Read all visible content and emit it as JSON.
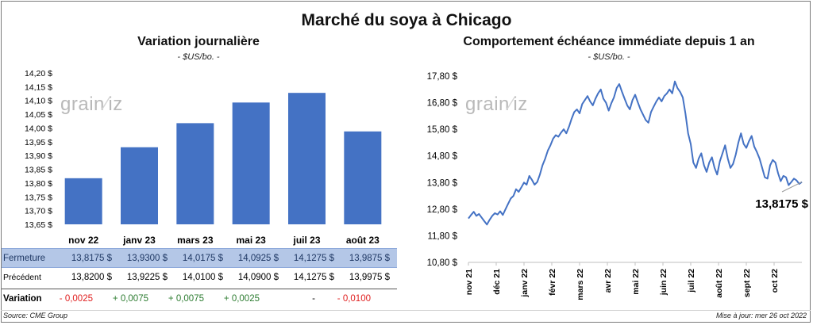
{
  "title": "Marché du soya à Chicago",
  "watermark": {
    "a": "grain",
    "b": "iz"
  },
  "left": {
    "title": "Variation  journalière",
    "unit": "- $US/bo. -"
  },
  "right": {
    "title": "Comportement  échéance immédiate depuis 1 an",
    "unit": "- $US/bo. -"
  },
  "colors": {
    "bar": "#4472c4",
    "line": "#4472c4",
    "positive": "#2e7d32",
    "negative": "#e02020",
    "header_band": "#b4c7e7"
  },
  "chart_data": [
    {
      "type": "bar",
      "title": "Variation  journalière",
      "categories": [
        "nov 22",
        "janv 23",
        "mars 23",
        "mai 23",
        "juil 23",
        "août 23"
      ],
      "values": [
        13.8175,
        13.93,
        14.0175,
        14.0925,
        14.1275,
        13.9875
      ],
      "ylim": [
        13.65,
        14.2
      ],
      "yticks": [
        "13,65 $",
        "13,70 $",
        "13,75 $",
        "13,80 $",
        "13,85 $",
        "13,90 $",
        "13,95 $",
        "14,00 $",
        "14,05 $",
        "14,10 $",
        "14,15 $",
        "14,20 $"
      ],
      "grid": false
    },
    {
      "type": "line",
      "title": "Comportement  échéance immédiate depuis 1 an",
      "ylim": [
        10.8,
        17.8
      ],
      "yticks": [
        "10,80 $",
        "11,80 $",
        "12,80 $",
        "13,80 $",
        "14,80 $",
        "15,80 $",
        "16,80 $",
        "17,80 $"
      ],
      "xticks": [
        "nov 21",
        "déc 21",
        "janv 22",
        "févr 22",
        "mars 22",
        "avr 22",
        "mai 22",
        "juin 22",
        "juil 22",
        "août 22",
        "sept 22",
        "oct 22"
      ],
      "last_value_label": "13,8175 $",
      "grid": false,
      "series": [
        {
          "values": [
            12.45,
            12.58,
            12.7,
            12.55,
            12.62,
            12.48,
            12.35,
            12.22,
            12.4,
            12.55,
            12.65,
            12.6,
            12.72,
            12.58,
            12.8,
            13.0,
            13.2,
            13.3,
            13.55,
            13.45,
            13.62,
            13.8,
            13.72,
            14.05,
            13.9,
            13.72,
            13.82,
            14.1,
            14.45,
            14.7,
            15.0,
            15.2,
            15.45,
            15.58,
            15.52,
            15.68,
            15.8,
            15.65,
            15.9,
            16.2,
            16.45,
            16.55,
            16.4,
            16.75,
            16.9,
            17.05,
            16.85,
            16.7,
            16.95,
            17.15,
            17.3,
            16.95,
            16.8,
            16.5,
            16.78,
            17.0,
            17.35,
            17.5,
            17.22,
            16.95,
            16.7,
            16.55,
            16.9,
            17.1,
            16.82,
            16.55,
            16.35,
            16.15,
            16.05,
            16.45,
            16.65,
            16.85,
            17.0,
            16.85,
            17.05,
            17.15,
            17.3,
            17.15,
            17.6,
            17.35,
            17.2,
            17.0,
            16.4,
            15.65,
            15.25,
            14.55,
            14.35,
            14.7,
            14.9,
            14.45,
            14.2,
            14.55,
            14.75,
            14.35,
            14.1,
            14.6,
            14.9,
            15.2,
            14.7,
            14.35,
            14.5,
            14.85,
            15.3,
            15.65,
            15.25,
            15.1,
            15.35,
            15.55,
            15.15,
            14.95,
            14.7,
            14.35,
            14.0,
            13.95,
            14.45,
            14.65,
            14.55,
            14.15,
            13.85,
            14.05,
            14.0,
            13.7,
            13.82,
            13.95,
            13.88,
            13.75,
            13.82
          ]
        }
      ]
    }
  ],
  "table": {
    "rows": [
      {
        "label": "Fermeture",
        "values": [
          "13,8175  $",
          "13,9300  $",
          "14,0175  $",
          "14,0925  $",
          "14,1275  $",
          "13,9875  $"
        ]
      },
      {
        "label": "Précédent",
        "values": [
          "13,8200  $",
          "13,9225  $",
          "14,0100  $",
          "14,0900  $",
          "14,1275  $",
          "13,9975  $"
        ]
      },
      {
        "label": "Variation",
        "values": [
          "- 0,0025",
          "+ 0,0075",
          "+ 0,0075",
          "+ 0,0025",
          "-",
          "- 0,0100"
        ]
      }
    ]
  },
  "footer": {
    "source": "Source: CME Group",
    "updated": "Mise à jour: mer 26 oct 2022"
  }
}
